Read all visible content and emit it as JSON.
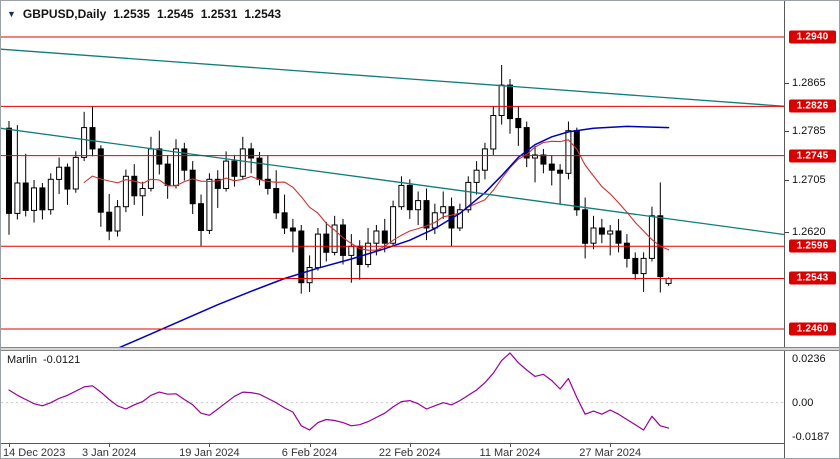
{
  "header": {
    "symbol_period": "GBPUSD,Daily",
    "open": "1.2535",
    "high": "1.2545",
    "low": "1.2531",
    "close": "1.2543"
  },
  "icons": {
    "symbol_dropdown": "▼"
  },
  "colors": {
    "level_line": "#e60000",
    "badge_bg": "#d90000",
    "badge_text": "#ffffff",
    "trendline": "#0f7d7d",
    "ma_blue": "#0000bb",
    "ma_red": "#cc3333",
    "candle_up": "#ffffff",
    "candle_down": "#000000",
    "candle_border": "#000000",
    "marlin": "#990099"
  },
  "chart_data": {
    "type": "candlestick",
    "title": "GBPUSD,Daily",
    "timeframe": "Daily",
    "price_levels": [
      {
        "price": 1.294,
        "label": "1.2940"
      },
      {
        "price": 1.2826,
        "label": "1.2826"
      },
      {
        "price": 1.2745,
        "label": "1.2745"
      },
      {
        "price": 1.2596,
        "label": "1.2596"
      },
      {
        "price": 1.246,
        "label": "1.2460"
      }
    ],
    "current_price": {
      "price": 1.2543,
      "label": "1.2543"
    },
    "axis_price_labels": [
      {
        "price": 1.2865,
        "label": "1.2865"
      },
      {
        "price": 1.2785,
        "label": "1.2785"
      },
      {
        "price": 1.2705,
        "label": "1.2705"
      },
      {
        "price": 1.262,
        "label": "1.2620"
      }
    ],
    "x_ticks": [
      {
        "bar": 0,
        "label": "14 Dec 2023"
      },
      {
        "bar": 12,
        "label": "3 Jan 2024"
      },
      {
        "bar": 24,
        "label": "19 Jan 2024"
      },
      {
        "bar": 36,
        "label": "6 Feb 2024"
      },
      {
        "bar": 48,
        "label": "22 Feb 2024"
      },
      {
        "bar": 60,
        "label": "11 Mar 2024"
      },
      {
        "bar": 72,
        "label": "27 Mar 2024"
      }
    ],
    "candles": [
      [
        1.279,
        1.2802,
        1.2615,
        1.265
      ],
      [
        1.265,
        1.2795,
        1.264,
        1.27
      ],
      [
        1.27,
        1.2748,
        1.2645,
        1.2655
      ],
      [
        1.2655,
        1.2705,
        1.2635,
        1.2692
      ],
      [
        1.2692,
        1.27,
        1.264,
        1.2656
      ],
      [
        1.2656,
        1.2716,
        1.2648,
        1.2706
      ],
      [
        1.2706,
        1.2742,
        1.2682,
        1.2726
      ],
      [
        1.2726,
        1.2732,
        1.2664,
        1.269
      ],
      [
        1.269,
        1.2752,
        1.2684,
        1.2742
      ],
      [
        1.2742,
        1.2817,
        1.2736,
        1.2791
      ],
      [
        1.2791,
        1.2826,
        1.2744,
        1.2756
      ],
      [
        1.2756,
        1.2762,
        1.2628,
        1.2652
      ],
      [
        1.2652,
        1.2682,
        1.2606,
        1.2621
      ],
      [
        1.2621,
        1.2672,
        1.2612,
        1.2661
      ],
      [
        1.2661,
        1.2722,
        1.2652,
        1.2711
      ],
      [
        1.2711,
        1.2731,
        1.2664,
        1.2679
      ],
      [
        1.2679,
        1.2702,
        1.2646,
        1.2691
      ],
      [
        1.2691,
        1.2776,
        1.2686,
        1.2756
      ],
      [
        1.2756,
        1.2786,
        1.2714,
        1.2731
      ],
      [
        1.2731,
        1.2746,
        1.2674,
        1.2696
      ],
      [
        1.2696,
        1.2772,
        1.2691,
        1.2756
      ],
      [
        1.2756,
        1.2766,
        1.2704,
        1.2721
      ],
      [
        1.2721,
        1.2736,
        1.2649,
        1.2666
      ],
      [
        1.2666,
        1.2681,
        1.2596,
        1.2622
      ],
      [
        1.2622,
        1.2716,
        1.2616,
        1.2706
      ],
      [
        1.2706,
        1.2721,
        1.2659,
        1.2691
      ],
      [
        1.2691,
        1.2752,
        1.2686,
        1.2736
      ],
      [
        1.2736,
        1.2746,
        1.2694,
        1.2711
      ],
      [
        1.2711,
        1.2776,
        1.2706,
        1.2756
      ],
      [
        1.2756,
        1.2766,
        1.2716,
        1.2741
      ],
      [
        1.2741,
        1.2751,
        1.2696,
        1.2706
      ],
      [
        1.2706,
        1.2746,
        1.2681,
        1.2691
      ],
      [
        1.2691,
        1.2721,
        1.2641,
        1.2651
      ],
      [
        1.2651,
        1.2681,
        1.2616,
        1.2626
      ],
      [
        1.2626,
        1.2641,
        1.2586,
        1.2621
      ],
      [
        1.2621,
        1.2631,
        1.2518,
        1.2536
      ],
      [
        1.2536,
        1.2581,
        1.2521,
        1.2561
      ],
      [
        1.2561,
        1.2626,
        1.2556,
        1.2616
      ],
      [
        1.2616,
        1.2636,
        1.2571,
        1.2586
      ],
      [
        1.2586,
        1.2646,
        1.2581,
        1.2631
      ],
      [
        1.2631,
        1.2641,
        1.2566,
        1.2581
      ],
      [
        1.2581,
        1.2616,
        1.2536,
        1.2596
      ],
      [
        1.2596,
        1.2606,
        1.2541,
        1.2566
      ],
      [
        1.2566,
        1.2626,
        1.2561,
        1.2601
      ],
      [
        1.2601,
        1.2631,
        1.2581,
        1.2621
      ],
      [
        1.2621,
        1.2641,
        1.2586,
        1.2601
      ],
      [
        1.2601,
        1.2671,
        1.2596,
        1.2661
      ],
      [
        1.2661,
        1.2711,
        1.2656,
        1.2696
      ],
      [
        1.2696,
        1.2706,
        1.2641,
        1.2656
      ],
      [
        1.2656,
        1.2686,
        1.2631,
        1.2671
      ],
      [
        1.2671,
        1.2691,
        1.2606,
        1.2626
      ],
      [
        1.2626,
        1.2666,
        1.2616,
        1.2651
      ],
      [
        1.2651,
        1.2686,
        1.2641,
        1.2661
      ],
      [
        1.2661,
        1.2676,
        1.2596,
        1.2626
      ],
      [
        1.2626,
        1.2666,
        1.2621,
        1.2656
      ],
      [
        1.2656,
        1.2711,
        1.2651,
        1.2701
      ],
      [
        1.2701,
        1.2736,
        1.2681,
        1.2721
      ],
      [
        1.2721,
        1.2766,
        1.2706,
        1.2756
      ],
      [
        1.2756,
        1.2826,
        1.2746,
        1.2811
      ],
      [
        1.2811,
        1.2894,
        1.2796,
        1.2861
      ],
      [
        1.2861,
        1.2871,
        1.2781,
        1.2806
      ],
      [
        1.2806,
        1.2826,
        1.2761,
        1.2791
      ],
      [
        1.2791,
        1.2801,
        1.2726,
        1.2741
      ],
      [
        1.2741,
        1.2761,
        1.2701,
        1.2746
      ],
      [
        1.2746,
        1.2756,
        1.2716,
        1.2731
      ],
      [
        1.2731,
        1.2746,
        1.2696,
        1.2721
      ],
      [
        1.2721,
        1.2731,
        1.2666,
        1.2716
      ],
      [
        1.2716,
        1.2801,
        1.2706,
        1.2786
      ],
      [
        1.2786,
        1.2791,
        1.2646,
        1.2656
      ],
      [
        1.2656,
        1.2676,
        1.2576,
        1.2601
      ],
      [
        1.2601,
        1.2646,
        1.2591,
        1.2626
      ],
      [
        1.2626,
        1.2641,
        1.2601,
        1.2616
      ],
      [
        1.2616,
        1.2631,
        1.2581,
        1.2621
      ],
      [
        1.2621,
        1.2641,
        1.2586,
        1.2601
      ],
      [
        1.2601,
        1.2616,
        1.2561,
        1.2576
      ],
      [
        1.2576,
        1.2586,
        1.2541,
        1.2551
      ],
      [
        1.2551,
        1.2586,
        1.2521,
        1.2576
      ],
      [
        1.2576,
        1.2661,
        1.2571,
        1.2646
      ],
      [
        1.2646,
        1.2701,
        1.252,
        1.2546
      ],
      [
        1.2535,
        1.2545,
        1.2531,
        1.2543
      ]
    ],
    "ma_blue_anchors": [
      [
        13,
        1.2428
      ],
      [
        17,
        1.2452
      ],
      [
        21,
        1.2476
      ],
      [
        25,
        1.25
      ],
      [
        29,
        1.2522
      ],
      [
        33,
        1.2543
      ],
      [
        37,
        1.256
      ],
      [
        41,
        1.2575
      ],
      [
        45,
        1.2592
      ],
      [
        48,
        1.2606
      ],
      [
        51,
        1.2625
      ],
      [
        54,
        1.265
      ],
      [
        57,
        1.2684
      ],
      [
        59,
        1.2712
      ],
      [
        61,
        1.2742
      ],
      [
        63,
        1.2763
      ],
      [
        65,
        1.2776
      ],
      [
        67,
        1.2784
      ],
      [
        70,
        1.279
      ],
      [
        74,
        1.2793
      ],
      [
        79,
        1.2791
      ]
    ],
    "red_ma_period": 10,
    "trendlines": [
      {
        "from": [
          -1,
          1.292
        ],
        "to": [
          93,
          1.2826
        ]
      },
      {
        "from": [
          -1,
          1.279
        ],
        "to": [
          93,
          1.2615
        ]
      }
    ],
    "indicator": {
      "name": "Marlin",
      "current": "-0.0121",
      "max": 0.0236,
      "min": -0.0187,
      "axis_labels": [
        {
          "v": 0.0236,
          "text": "0.0236"
        },
        {
          "v": 0.0,
          "text": "0.00"
        },
        {
          "v": -0.0187,
          "text": "-0.0187"
        }
      ],
      "values": [
        0.006,
        0.0035,
        0.0015,
        -0.0005,
        -0.0015,
        0.0,
        0.002,
        0.0035,
        0.0055,
        0.0075,
        0.008,
        0.005,
        0.0015,
        -0.0015,
        -0.003,
        -0.001,
        0.0005,
        0.0035,
        0.005,
        0.004,
        0.0042,
        0.0015,
        -0.001,
        -0.005,
        -0.006,
        -0.003,
        0.0,
        0.003,
        0.005,
        0.0048,
        0.004,
        0.002,
        0.0,
        -0.0025,
        -0.0045,
        -0.011,
        -0.013,
        -0.0095,
        -0.008,
        -0.0085,
        -0.0095,
        -0.011,
        -0.0105,
        -0.009,
        -0.007,
        -0.005,
        -0.002,
        0.0005,
        0.001,
        -0.0005,
        -0.003,
        -0.0015,
        0.0,
        -0.001,
        0.001,
        0.0035,
        0.006,
        0.0095,
        0.014,
        0.02,
        0.0236,
        0.019,
        0.0155,
        0.0125,
        0.0135,
        0.0105,
        0.0065,
        0.0115,
        0.0025,
        -0.0055,
        -0.004,
        -0.0055,
        -0.0035,
        -0.0055,
        -0.008,
        -0.0105,
        -0.013,
        -0.0065,
        -0.011,
        -0.0121
      ]
    }
  }
}
